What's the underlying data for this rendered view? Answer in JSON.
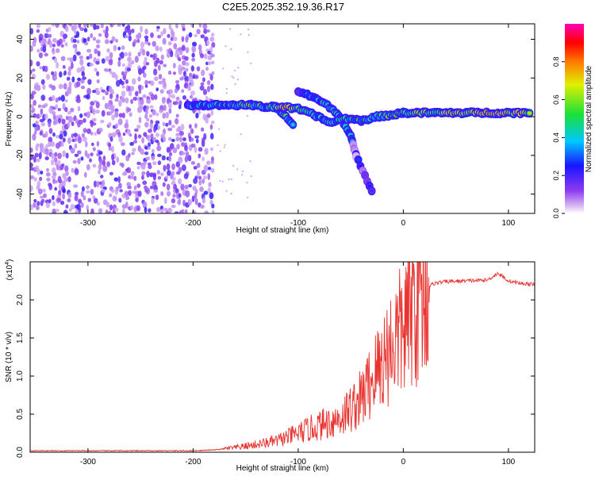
{
  "title": "C2E5.2025.352.19.36.R17",
  "chart_data": [
    {
      "type": "heatmap",
      "xlabel": "Height of straight line (km)",
      "ylabel": "Frequency (Hz)",
      "xlim": [
        -355,
        125
      ],
      "ylim": [
        -50,
        48
      ],
      "xticks": [
        -300,
        -200,
        -100,
        0,
        100
      ],
      "xtick_labels": [
        "-300",
        "-200",
        "-100",
        "0",
        "100"
      ],
      "yticks": [
        40,
        20,
        0,
        -20,
        -40
      ],
      "ytick_labels": [
        "40",
        "20",
        "0",
        "-20",
        "-40"
      ],
      "colorbar": {
        "label": "Normalized spectral amplitude",
        "range": [
          0,
          1
        ],
        "ticks": [
          0.0,
          0.2,
          0.4,
          0.6,
          0.8
        ],
        "tick_labels": [
          "0.0",
          "0.2",
          "0.4",
          "0.6",
          "0.8"
        ],
        "colormap": "rainbow: white-violet-blue-cyan-green-yellow-red-magenta"
      },
      "noise_region": {
        "x_from": -355,
        "x_to": -180,
        "f_from": -50,
        "f_to": 48
      },
      "main_track": [
        {
          "x": -205,
          "f": 6,
          "a": 0.3
        },
        {
          "x": -190,
          "f": 6,
          "a": 0.45
        },
        {
          "x": -175,
          "f": 6,
          "a": 0.45
        },
        {
          "x": -160,
          "f": 6,
          "a": 0.5
        },
        {
          "x": -145,
          "f": 6,
          "a": 0.7
        },
        {
          "x": -130,
          "f": 5,
          "a": 0.5
        },
        {
          "x": -115,
          "f": 5,
          "a": 0.9
        },
        {
          "x": -100,
          "f": 4,
          "a": 0.8
        },
        {
          "x": -85,
          "f": 1,
          "a": 0.5
        },
        {
          "x": -70,
          "f": -3,
          "a": 0.45
        },
        {
          "x": -55,
          "f": -1,
          "a": 0.55
        },
        {
          "x": -40,
          "f": -2,
          "a": 0.55
        },
        {
          "x": -25,
          "f": 0,
          "a": 0.45
        },
        {
          "x": -10,
          "f": 1,
          "a": 0.75
        },
        {
          "x": 0,
          "f": 2,
          "a": 0.6
        },
        {
          "x": 15,
          "f": 2,
          "a": 0.85
        },
        {
          "x": 30,
          "f": 2,
          "a": 0.6
        },
        {
          "x": 45,
          "f": 2,
          "a": 0.85
        },
        {
          "x": 60,
          "f": 2,
          "a": 0.8
        },
        {
          "x": 75,
          "f": 2,
          "a": 0.9
        },
        {
          "x": 90,
          "f": 2,
          "a": 0.95
        },
        {
          "x": 105,
          "f": 2,
          "a": 0.85
        },
        {
          "x": 120,
          "f": 2,
          "a": 0.75
        }
      ],
      "secondary_tracks": [
        [
          {
            "x": -125,
            "f": 6,
            "a": 0.4
          },
          {
            "x": -115,
            "f": 2,
            "a": 0.6
          },
          {
            "x": -105,
            "f": -4,
            "a": 0.5
          }
        ],
        [
          {
            "x": -100,
            "f": 13,
            "a": 0.35
          },
          {
            "x": -85,
            "f": 10,
            "a": 0.4
          },
          {
            "x": -70,
            "f": 5,
            "a": 0.55
          },
          {
            "x": -60,
            "f": 0,
            "a": 0.45
          },
          {
            "x": -50,
            "f": -10,
            "a": 0.35
          },
          {
            "x": -45,
            "f": -20,
            "a": 0.12
          },
          {
            "x": -30,
            "f": -38,
            "a": 0.08
          }
        ]
      ]
    },
    {
      "type": "line",
      "xlabel": "Height of straight line (km)",
      "ylabel": "SNR (10 * v/v)",
      "y_multiplier": "(x10",
      "y_multiplier_exp": "4",
      "y_multiplier_close": ")",
      "xlim": [
        -355,
        125
      ],
      "ylim": [
        0,
        2.5
      ],
      "xticks": [
        -300,
        -200,
        -100,
        0,
        100
      ],
      "xtick_labels": [
        "-300",
        "-200",
        "-100",
        "0",
        "100"
      ],
      "yticks": [
        0.0,
        0.5,
        1.0,
        1.5,
        2.0
      ],
      "ytick_labels": [
        "0.0",
        "0.5",
        "1.0",
        "1.5",
        "2.0"
      ],
      "color": "#e8332f",
      "series": [
        {
          "name": "SNR",
          "x": [
            -355,
            -300,
            -250,
            -200,
            -180,
            -160,
            -140,
            -120,
            -100,
            -80,
            -60,
            -40,
            -30,
            -20,
            -10,
            0,
            10,
            20,
            30,
            40,
            60,
            80,
            90,
            100,
            110,
            125
          ],
          "y": [
            0.02,
            0.02,
            0.02,
            0.02,
            0.03,
            0.06,
            0.1,
            0.15,
            0.25,
            0.35,
            0.45,
            0.7,
            0.95,
            1.2,
            1.45,
            1.6,
            1.95,
            2.15,
            2.22,
            2.24,
            2.25,
            2.26,
            2.35,
            2.25,
            2.22,
            2.2
          ]
        }
      ]
    }
  ]
}
